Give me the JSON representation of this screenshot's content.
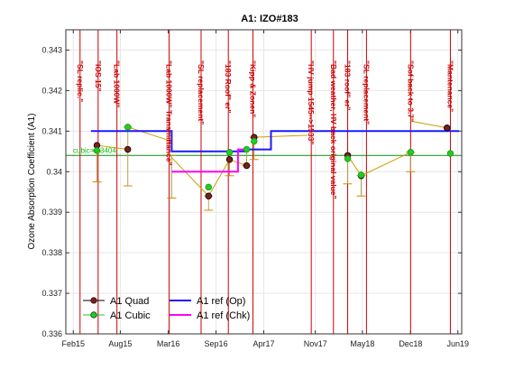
{
  "chart_data": {
    "type": "line",
    "title": "A1: IZO#183",
    "ylabel": "Ozone Absorption Coefficient (A1)",
    "xlabel": "",
    "xlim": [
      "2015-01-01",
      "2019-07-01"
    ],
    "ylim": [
      0.336,
      0.3435
    ],
    "x_ticks": [
      {
        "date": "2015-02-01",
        "label": "Feb15"
      },
      {
        "date": "2015-08-15",
        "label": "Aug15"
      },
      {
        "date": "2016-03-01",
        "label": "Mar16"
      },
      {
        "date": "2016-09-15",
        "label": "Sep16"
      },
      {
        "date": "2017-04-01",
        "label": "Apr17"
      },
      {
        "date": "2017-11-01",
        "label": "Nov17"
      },
      {
        "date": "2018-05-15",
        "label": "May18"
      },
      {
        "date": "2018-12-01",
        "label": "Dec18"
      },
      {
        "date": "2019-06-15",
        "label": "Jun19"
      }
    ],
    "y_ticks": [
      {
        "value": 0.336,
        "label": "0.336"
      },
      {
        "value": 0.337,
        "label": "0.337"
      },
      {
        "value": 0.338,
        "label": "0.338"
      },
      {
        "value": 0.339,
        "label": "0.339"
      },
      {
        "value": 0.34,
        "label": "0.34"
      },
      {
        "value": 0.341,
        "label": "0.341"
      },
      {
        "value": 0.342,
        "label": "0.342"
      },
      {
        "value": 0.343,
        "label": "0.343"
      }
    ],
    "grid": true,
    "legend_position": "bottom-left",
    "series": [
      {
        "name": "A1 Quad",
        "color": "#000000",
        "marker_color": "#7a1f1f",
        "x": [
          "2015-05-10",
          "2015-09-15",
          "2016-08-15",
          "2016-11-10",
          "2017-01-20",
          "2017-02-20",
          "2018-03-15",
          "2018-05-10",
          "2019-05-01"
        ],
        "y": [
          0.34065,
          0.34055,
          0.3394,
          0.3403,
          0.34015,
          0.34085,
          0.3404,
          0.3399,
          0.34108
        ]
      },
      {
        "name": "A1 Cubic",
        "color": "#22cc22",
        "marker_color": "#22cc22",
        "x": [
          "2015-05-10",
          "2015-09-15",
          "2016-08-15",
          "2016-11-10",
          "2017-01-20",
          "2017-02-20",
          "2018-03-15",
          "2018-05-10",
          "2018-12-01",
          "2019-05-15"
        ],
        "y": [
          0.34052,
          0.3411,
          0.33962,
          0.34048,
          0.34055,
          0.34075,
          0.34032,
          0.33992,
          0.34048,
          0.34045
        ]
      },
      {
        "name": "A1 ref (Op)",
        "color": "#1a1aff",
        "step": true,
        "x": [
          "2015-04-15",
          "2016-03-15",
          "2016-03-15",
          "2017-01-15",
          "2017-01-15",
          "2017-05-01",
          "2017-05-01",
          "2019-06-20"
        ],
        "y": [
          0.341,
          0.341,
          0.3405,
          0.3405,
          0.34055,
          0.34055,
          0.341,
          0.341
        ]
      },
      {
        "name": "A1 ref (Chk)",
        "color": "#ff00ff",
        "step": true,
        "x": [
          "2016-03-15",
          "2016-12-15",
          "2016-12-15",
          "2017-01-15"
        ],
        "y": [
          0.34,
          0.34,
          0.34055,
          0.34055
        ]
      }
    ],
    "errorbars": {
      "color": "#cc0000",
      "items": [
        {
          "x": "2015-05-10",
          "y": [
            0.33975,
            0.34052
          ]
        },
        {
          "x": "2015-09-15",
          "y": [
            0.33965,
            0.3411
          ]
        },
        {
          "x": "2016-03-15",
          "y": [
            0.33935,
            0.3404
          ]
        },
        {
          "x": "2016-08-15",
          "y": [
            0.33905,
            0.3394
          ]
        },
        {
          "x": "2016-11-10",
          "y": [
            0.3399,
            0.3405
          ]
        },
        {
          "x": "2017-01-20",
          "y": [
            0.34015,
            0.34055
          ]
        },
        {
          "x": "2017-02-20",
          "y": [
            0.3403,
            0.34085
          ]
        },
        {
          "x": "2018-03-15",
          "y": [
            0.3397,
            0.3404
          ]
        },
        {
          "x": "2018-05-10",
          "y": [
            0.3394,
            0.3399
          ]
        },
        {
          "x": "2018-12-01",
          "y": [
            0.34,
            0.34048
          ]
        }
      ]
    },
    "trend_lines": {
      "color": "#c8a000",
      "segments": [
        {
          "x": [
            "2015-05-10",
            "2015-09-15"
          ],
          "y": [
            0.34065,
            0.34055
          ]
        },
        {
          "x": [
            "2015-09-15",
            "2016-03-15"
          ],
          "y": [
            0.3411,
            0.34075
          ]
        },
        {
          "x": [
            "2016-03-15",
            "2016-08-15"
          ],
          "y": [
            0.34035,
            0.3394
          ]
        },
        {
          "x": [
            "2016-08-15",
            "2016-11-10"
          ],
          "y": [
            0.3394,
            0.3403
          ]
        },
        {
          "x": [
            "2016-11-10",
            "2017-01-20"
          ],
          "y": [
            0.3403,
            0.34015
          ]
        },
        {
          "x": [
            "2017-02-20",
            "2017-10-01"
          ],
          "y": [
            0.34085,
            0.3409
          ]
        },
        {
          "x": [
            "2018-03-15",
            "2018-05-10"
          ],
          "y": [
            0.3404,
            0.3399
          ]
        },
        {
          "x": [
            "2018-05-10",
            "2018-12-01"
          ],
          "y": [
            0.3399,
            0.34048
          ]
        },
        {
          "x": [
            "2018-12-01",
            "2019-05-01"
          ],
          "y": [
            0.34125,
            0.34108
          ]
        }
      ]
    },
    "reference_line": {
      "value": 0.3404,
      "color": "#118811",
      "label": "cubic=0.3404"
    },
    "event_markers": {
      "color": "#cc0000",
      "items": [
        {
          "date": "2015-03-01",
          "label": "\"SL replic.\""
        },
        {
          "date": "2015-05-15",
          "label": "\"IOS 15\""
        },
        {
          "date": "2015-08-01",
          "label": "\"Lab 1000W\""
        },
        {
          "date": "2016-03-05",
          "label": "\"Lab 1000W\" Transmittance\""
        },
        {
          "date": "2016-07-15",
          "label": "\"SL replacement\""
        },
        {
          "date": "2016-11-05",
          "label": "\"183 Roof\" er\""
        },
        {
          "date": "2017-02-15",
          "label": "\"Kipp & Zonen\""
        },
        {
          "date": "2017-10-15",
          "label": "\"HV jump 1545-->1533\""
        },
        {
          "date": "2018-01-15",
          "label": "\"Bad weather, HV back original value\""
        },
        {
          "date": "2018-03-15",
          "label": "\"183 roof\" er\""
        },
        {
          "date": "2018-06-01",
          "label": "\"SL replacement\""
        },
        {
          "date": "2018-12-01",
          "label": "\"Sof back to 3.7\""
        },
        {
          "date": "2019-05-15",
          "label": "\"Mantenance\""
        }
      ]
    }
  }
}
